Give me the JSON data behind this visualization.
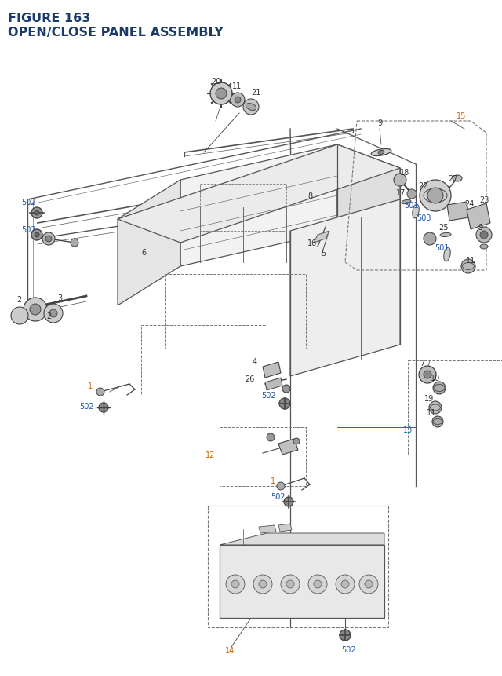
{
  "title_line1": "FIGURE 163",
  "title_line2": "OPEN/CLOSE PANEL ASSEMBLY",
  "title_color": "#1a3a6b",
  "title_fontsize": 11.5,
  "bg_color": "#ffffff",
  "fig_width": 6.4,
  "fig_height": 8.62,
  "line_color": "#555555",
  "dashed_color": "#777777",
  "part_color": "#444444",
  "black_label": "#333333",
  "orange_label": "#cc6600",
  "blue_label": "#2255aa",
  "cyan_label": "#007799"
}
